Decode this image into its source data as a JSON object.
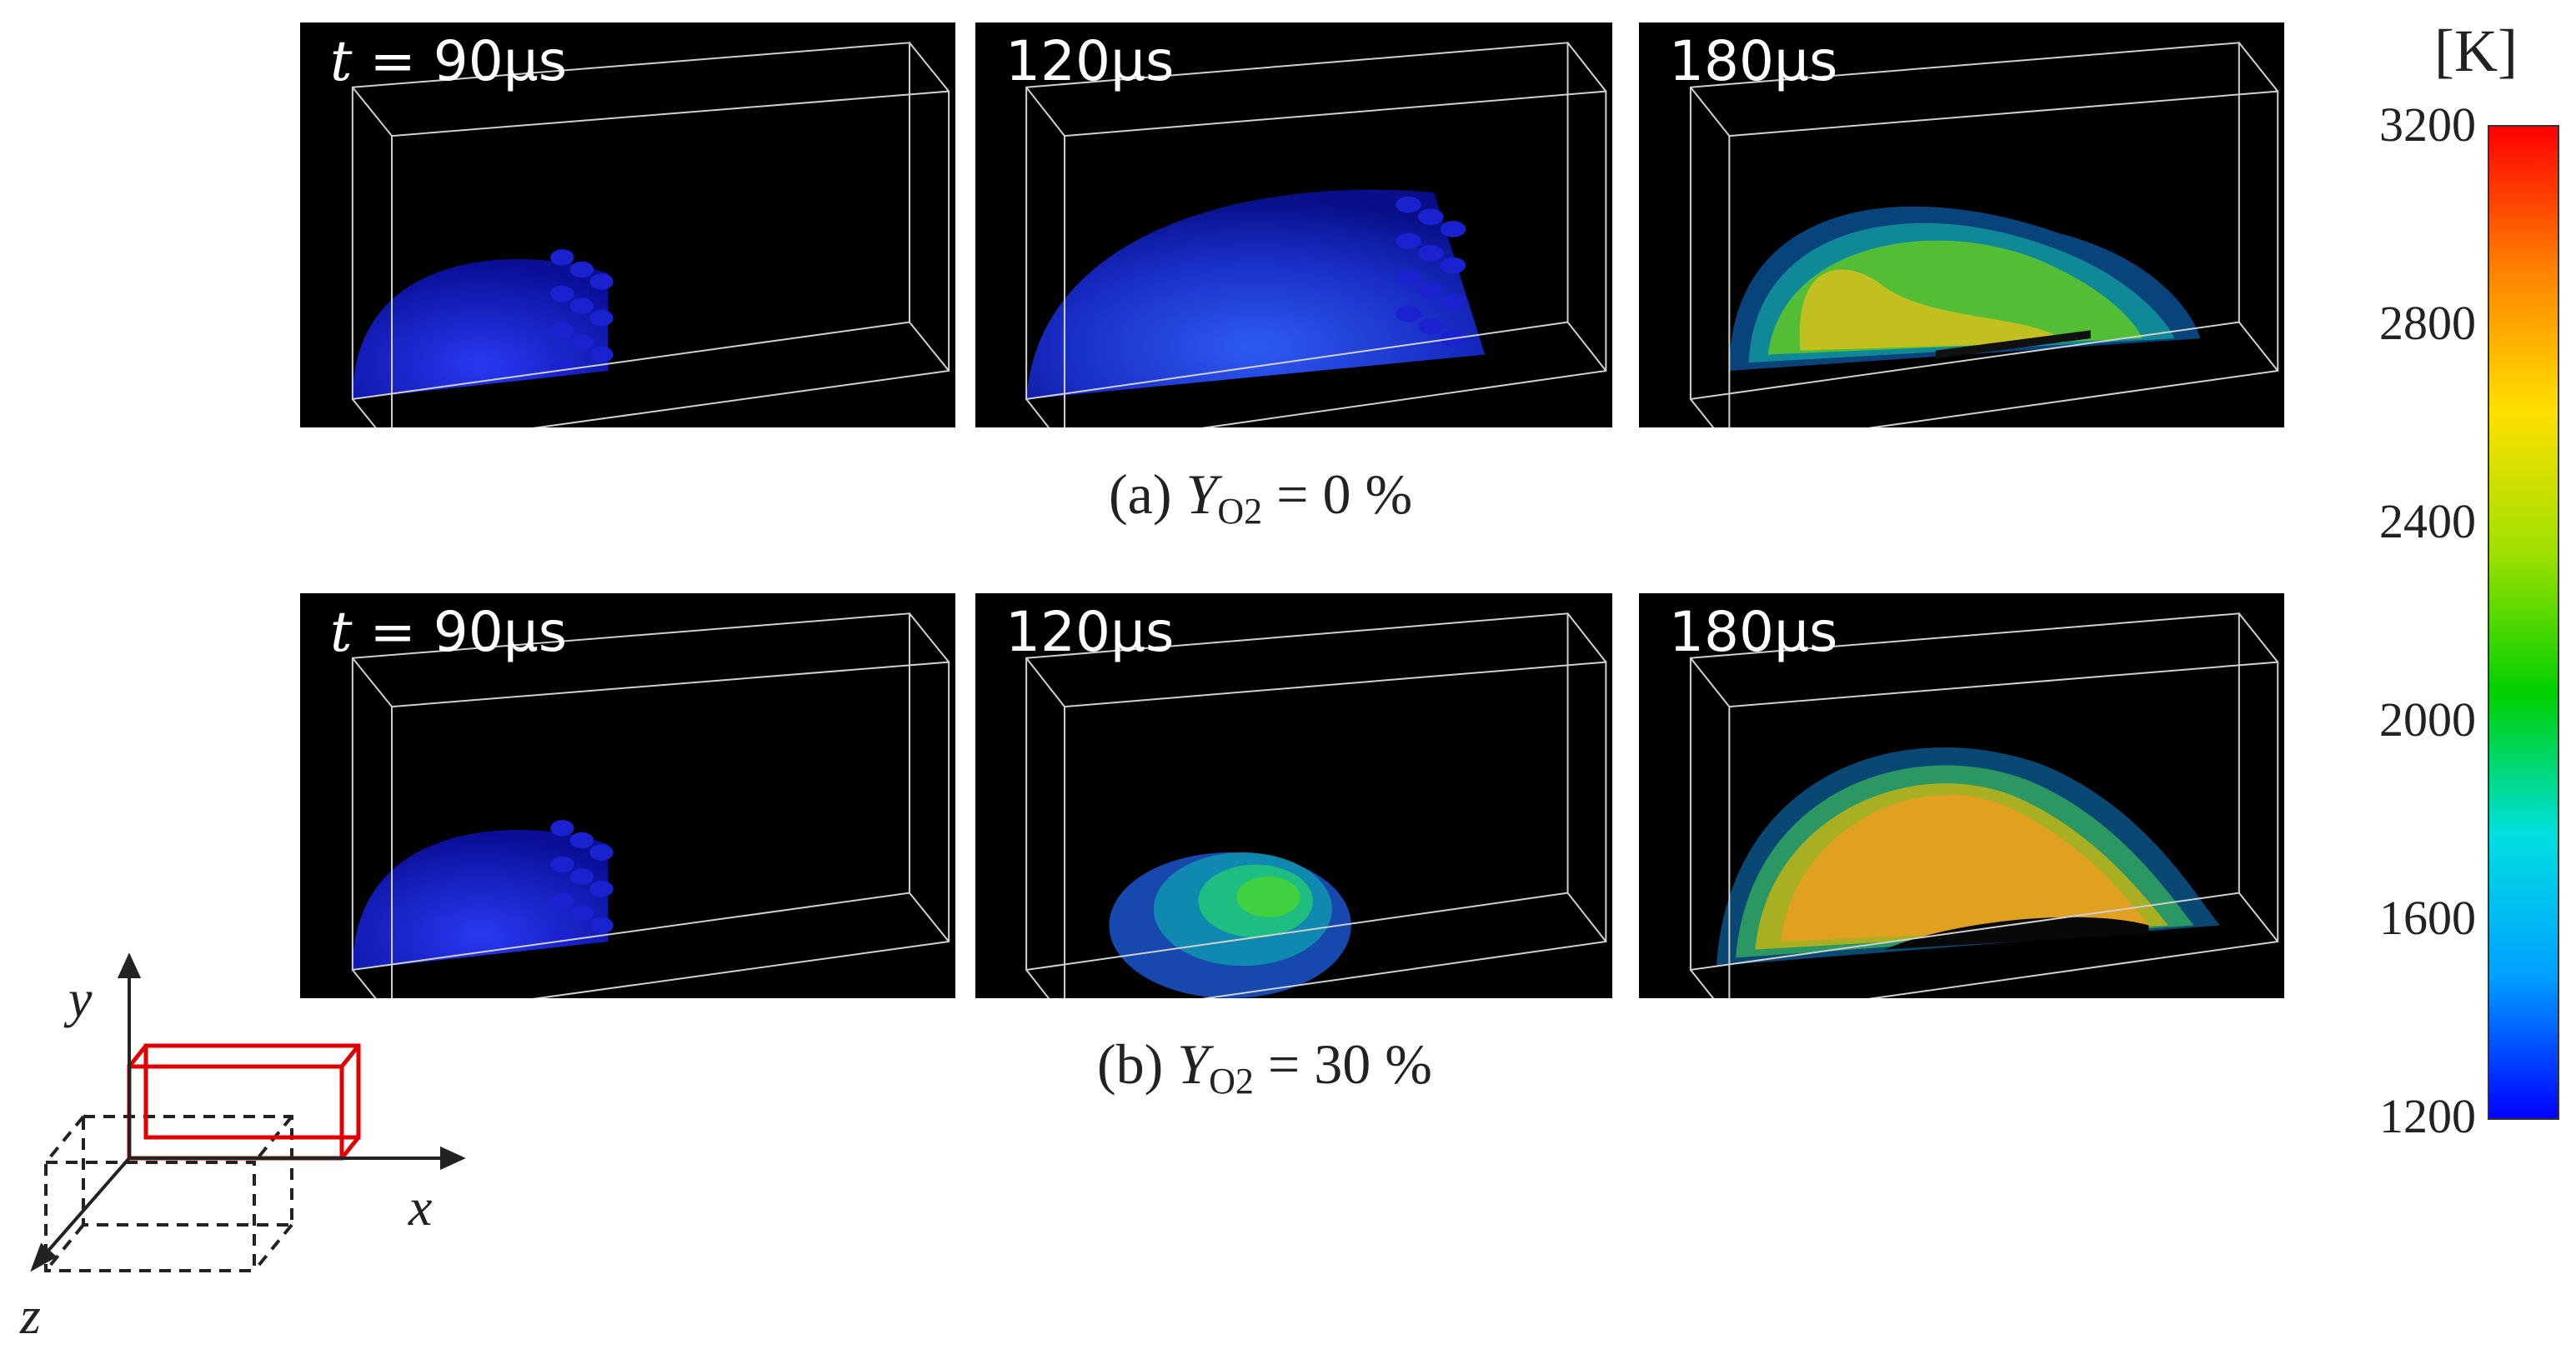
{
  "rows": [
    {
      "caption": {
        "prefix": "(a)",
        "symbol": "Y",
        "subscript": "O2",
        "equation": "= 0 %"
      },
      "panels": [
        {
          "time_prefix": "t",
          "time_label": "= 90μs",
          "shape": "blue-small"
        },
        {
          "time_prefix": "",
          "time_label": "120μs",
          "shape": "blue-medium"
        },
        {
          "time_prefix": "",
          "time_label": "180μs",
          "shape": "yellow-green-dome"
        }
      ]
    },
    {
      "caption": {
        "prefix": "(b)",
        "symbol": "Y",
        "subscript": "O2",
        "equation": "= 30 %"
      },
      "panels": [
        {
          "time_prefix": "t",
          "time_label": "= 90μs",
          "shape": "blue-small"
        },
        {
          "time_prefix": "",
          "time_label": "120μs",
          "shape": "green-kernel"
        },
        {
          "time_prefix": "",
          "time_label": "180μs",
          "shape": "orange-dome"
        }
      ]
    }
  ],
  "colorbar": {
    "unit": "[K]",
    "min": 1200,
    "max": 3200,
    "ticks": [
      "3200",
      "2800",
      "2400",
      "2000",
      "1600",
      "1200"
    ],
    "colormap": [
      "#0000ff",
      "#00a0ff",
      "#00e0e0",
      "#00d000",
      "#a0e000",
      "#ffe000",
      "#ff8000",
      "#ff0000"
    ]
  },
  "axes_icon": {
    "x_label": "x",
    "y_label": "y",
    "z_label": "z",
    "highlight_color": "#e00000"
  }
}
